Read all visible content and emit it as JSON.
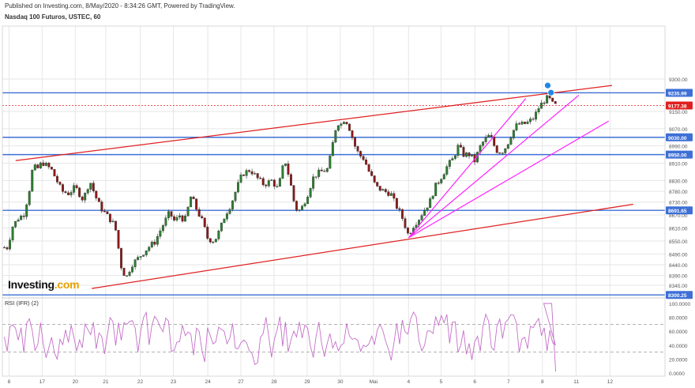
{
  "header": {
    "published": "Published on Investing.com, 8/May/2020 - 8:34:26 GMT, Powered by TradingView.",
    "symbol": "Nasdaq 100 Futuros, USTEC, 60"
  },
  "brand": {
    "name": "Investing",
    "suffix": ".com"
  },
  "colors": {
    "up": "#2e7d32",
    "down": "#8b1a1a",
    "hline": "#3d6fd6",
    "channel": "#e02020",
    "fan": "#ff22ff",
    "rsi": "#c46fc8",
    "grid": "#e6e6e6",
    "marker": "#1e88e5"
  },
  "chart_data": [
    {
      "type": "candlestick",
      "title": "Nasdaq 100 Futuros, USTEC, 60",
      "ylim": [
        8290,
        9545
      ],
      "xlim": [
        0,
        100
      ],
      "x_ticks": [
        {
          "x": 1,
          "label": "8"
        },
        {
          "x": 6,
          "label": "17"
        },
        {
          "x": 11,
          "label": "20"
        },
        {
          "x": 15.6,
          "label": "21"
        },
        {
          "x": 20.8,
          "label": "22"
        },
        {
          "x": 25.8,
          "label": "23"
        },
        {
          "x": 31,
          "label": "24"
        },
        {
          "x": 36,
          "label": "27"
        },
        {
          "x": 41,
          "label": "28"
        },
        {
          "x": 46,
          "label": "29"
        },
        {
          "x": 51,
          "label": "30"
        },
        {
          "x": 56,
          "label": "Mai"
        },
        {
          "x": 61.3,
          "label": "4"
        },
        {
          "x": 66.2,
          "label": "5"
        },
        {
          "x": 71.3,
          "label": "6"
        },
        {
          "x": 76.4,
          "label": "7"
        },
        {
          "x": 81.5,
          "label": "8"
        },
        {
          "x": 86.6,
          "label": "11"
        },
        {
          "x": 91.7,
          "label": "12"
        }
      ],
      "y_ticks": [
        9300,
        9150,
        9070,
        8990,
        8910,
        8830,
        8780,
        8730,
        8670,
        8610,
        8550,
        8490,
        8440,
        8390,
        8345
      ],
      "price_levels": [
        {
          "value": 9235.99,
          "label": "9235.99",
          "style": "solid"
        },
        {
          "value": 9177.38,
          "label": "9177.38",
          "style": "dotted"
        },
        {
          "value": 9030.0,
          "label": "9030.00",
          "style": "solid"
        },
        {
          "value": 8950.0,
          "label": "8950.00",
          "style": "solid"
        },
        {
          "value": 8691.65,
          "label": "8691.65",
          "style": "solid"
        },
        {
          "value": 8300.25,
          "label": "8300.25",
          "style": "solid"
        }
      ],
      "trend_lines": [
        {
          "kind": "channel",
          "from": [
            2,
            8922
          ],
          "to": [
            92,
            9270
          ]
        },
        {
          "kind": "channel",
          "from": [
            13.5,
            8330
          ],
          "to": [
            95.2,
            8720
          ]
        },
        {
          "kind": "fan",
          "from": [
            61.3,
            8565
          ],
          "to": [
            79,
            9210
          ]
        },
        {
          "kind": "fan",
          "from": [
            61.3,
            8565
          ],
          "to": [
            87,
            9225
          ]
        },
        {
          "kind": "fan",
          "from": [
            61.3,
            8565
          ],
          "to": [
            91.5,
            9105
          ]
        }
      ],
      "path_points": [
        [
          0,
          8520
        ],
        [
          0.8,
          8520
        ],
        [
          1.5,
          8615
        ],
        [
          2.5,
          8660
        ],
        [
          3.2,
          8670
        ],
        [
          3.6,
          8720
        ],
        [
          4.3,
          8820
        ],
        [
          4.6,
          8900
        ],
        [
          5.2,
          8880
        ],
        [
          6,
          8915
        ],
        [
          7.4,
          8880
        ],
        [
          8.2,
          8830
        ],
        [
          9,
          8780
        ],
        [
          10,
          8770
        ],
        [
          11,
          8800
        ],
        [
          12.2,
          8740
        ],
        [
          13.2,
          8830
        ],
        [
          14,
          8760
        ],
        [
          14.8,
          8705
        ],
        [
          16,
          8660
        ],
        [
          17,
          8620
        ],
        [
          18,
          8420
        ],
        [
          18.7,
          8380
        ],
        [
          19.5,
          8440
        ],
        [
          20.5,
          8470
        ],
        [
          22,
          8520
        ],
        [
          23,
          8545
        ],
        [
          24,
          8610
        ],
        [
          25.2,
          8680
        ],
        [
          26,
          8640
        ],
        [
          26.8,
          8670
        ],
        [
          27.5,
          8640
        ],
        [
          28.5,
          8760
        ],
        [
          29.4,
          8690
        ],
        [
          30.2,
          8640
        ],
        [
          31,
          8560
        ],
        [
          32,
          8550
        ],
        [
          32.8,
          8600
        ],
        [
          33.6,
          8670
        ],
        [
          34.5,
          8720
        ],
        [
          35.2,
          8780
        ],
        [
          36.2,
          8860
        ],
        [
          37.4,
          8880
        ],
        [
          38.5,
          8840
        ],
        [
          39.5,
          8810
        ],
        [
          40.6,
          8830
        ],
        [
          41.6,
          8790
        ],
        [
          42.6,
          8930
        ],
        [
          43.4,
          8830
        ],
        [
          44.2,
          8700
        ],
        [
          45,
          8690
        ],
        [
          46,
          8760
        ],
        [
          47,
          8850
        ],
        [
          48,
          8870
        ],
        [
          49,
          8880
        ],
        [
          49.6,
          8950
        ],
        [
          50,
          9030
        ],
        [
          50.5,
          9100
        ],
        [
          51.1,
          9090
        ],
        [
          51.7,
          9120
        ],
        [
          52.4,
          9070
        ],
        [
          53.2,
          8990
        ],
        [
          53.8,
          8950
        ],
        [
          54.6,
          8930
        ],
        [
          55.2,
          8880
        ],
        [
          56.4,
          8800
        ],
        [
          57.6,
          8780
        ],
        [
          58.6,
          8770
        ],
        [
          59.3,
          8720
        ],
        [
          60.2,
          8670
        ],
        [
          61.3,
          8575
        ],
        [
          62,
          8620
        ],
        [
          62.8,
          8650
        ],
        [
          63.6,
          8690
        ],
        [
          64.5,
          8730
        ],
        [
          65.3,
          8800
        ],
        [
          66.3,
          8850
        ],
        [
          67.2,
          8900
        ],
        [
          68,
          8930
        ],
        [
          68.8,
          8990
        ],
        [
          69.6,
          8950
        ],
        [
          70.5,
          8950
        ],
        [
          71.3,
          8920
        ],
        [
          72,
          8980
        ],
        [
          72.8,
          9020
        ],
        [
          73.6,
          9040
        ],
        [
          74.5,
          8970
        ],
        [
          75.3,
          8960
        ],
        [
          76.1,
          8990
        ],
        [
          76.9,
          9050
        ],
        [
          77.7,
          9090
        ],
        [
          78.6,
          9090
        ],
        [
          79.4,
          9100
        ],
        [
          80.2,
          9120
        ],
        [
          81,
          9170
        ],
        [
          81.8,
          9200
        ],
        [
          82.4,
          9215
        ],
        [
          83,
          9185
        ],
        [
          83.5,
          9177
        ]
      ],
      "markers": [
        {
          "x": 82.3,
          "y": 9270
        },
        {
          "x": 82.8,
          "y": 9237
        }
      ]
    },
    {
      "type": "line",
      "title": "RSI (IFR) (2)",
      "ylim": [
        0,
        100
      ],
      "y_ticks": [
        {
          "v": 100,
          "label": "100.0000"
        },
        {
          "v": 80,
          "label": "80.0000"
        },
        {
          "v": 60,
          "label": "60.0000"
        },
        {
          "v": 40,
          "label": "40.0000"
        },
        {
          "v": 20,
          "label": "20.0000"
        },
        {
          "v": 0,
          "label": "0.0000"
        }
      ],
      "ref_levels": [
        70,
        30
      ]
    }
  ]
}
